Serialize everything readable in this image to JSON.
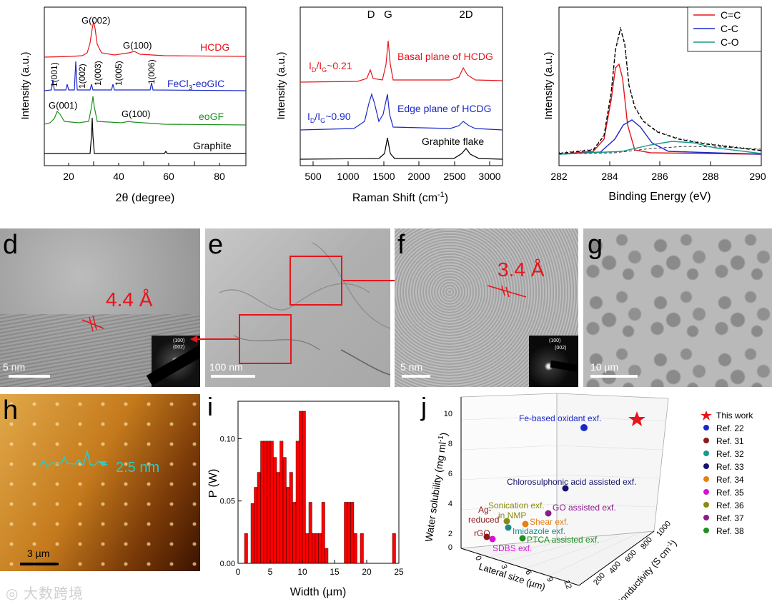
{
  "xrd": {
    "xlabel": "2θ (degree)",
    "ylabel": "Intensity (a.u.)",
    "xticks": [
      "20",
      "40",
      "60",
      "80"
    ],
    "samples": [
      {
        "name": "HCDG",
        "color": "#e8141b"
      },
      {
        "name": "FeCl3-eoGIC",
        "color": "#1a28c8"
      },
      {
        "name": "eoGF",
        "color": "#1f8f1f"
      },
      {
        "name": "Graphite",
        "color": "#000000"
      }
    ],
    "peak_labels": {
      "hcdg_g002": "G(002)",
      "hcdg_g100": "G(100)",
      "gic_1001": "1(001)",
      "gic_1002": "1(002)",
      "gic_1003": "1(003)",
      "gic_1005": "1(005)",
      "gic_1006": "1(006)",
      "eogf_g001": "G(001)",
      "eogf_g100": "G(100)"
    }
  },
  "raman": {
    "xlabel": "Raman Shift (cm-1)",
    "ylabel": "Intensity (a.u.)",
    "xticks": [
      "500",
      "1000",
      "1500",
      "2000",
      "2500",
      "3000"
    ],
    "band_labels": {
      "d": "D",
      "g": "G",
      "two_d": "2D"
    },
    "curves": [
      {
        "name": "Basal plane of HCDG",
        "ratio": "ID/IG~0.21",
        "color": "#e8141b"
      },
      {
        "name": "Edge plane of HCDG",
        "ratio": "ID/IG~0.90",
        "color": "#1a28c8"
      },
      {
        "name": "Graphite flake",
        "color": "#000000"
      }
    ]
  },
  "xps": {
    "xlabel": "Binding Energy (eV)",
    "ylabel": "Intensity (a.u.)",
    "xticks": [
      "282",
      "284",
      "286",
      "288",
      "290"
    ],
    "legend": [
      {
        "name": "C=C",
        "color": "#e8141b"
      },
      {
        "name": "C-C",
        "color": "#1a28c8"
      },
      {
        "name": "C-O",
        "color": "#1a9a8a"
      }
    ]
  },
  "images": {
    "d": {
      "label": "d",
      "scale": "5 nm",
      "spacing": "4.4 Å",
      "saed": [
        "(100)",
        "(002)"
      ]
    },
    "e": {
      "label": "e",
      "scale": "100 nm"
    },
    "f": {
      "label": "f",
      "scale": "5 nm",
      "spacing": "3.4 Å",
      "saed": [
        "(100)",
        "(002)"
      ]
    },
    "g": {
      "label": "g",
      "scale": "10 µm"
    },
    "h": {
      "label": "h",
      "scale": "3 µm",
      "height": "2.5 nm"
    }
  },
  "chart_data": {
    "type": "bar",
    "title": "i",
    "xlabel": "Width (µm)",
    "ylabel": "P (W)",
    "xlim": [
      0,
      25
    ],
    "ylim": [
      0,
      0.13
    ],
    "xticks": [
      "0",
      "5",
      "10",
      "15",
      "20",
      "25"
    ],
    "yticks": [
      "0.00",
      "0.05",
      "0.10"
    ],
    "bins_x": [
      1.0,
      2.0,
      2.5,
      3.0,
      3.5,
      4.0,
      4.5,
      5.0,
      5.5,
      6.0,
      6.5,
      7.0,
      7.5,
      8.0,
      8.5,
      9.0,
      9.5,
      10.0,
      10.5,
      11.0,
      11.5,
      12.0,
      12.5,
      13.0,
      13.5,
      16.5,
      17.0,
      17.5,
      18.0,
      19.0,
      24.0
    ],
    "bin_width": 0.5,
    "values": [
      0.024,
      0.048,
      0.061,
      0.073,
      0.098,
      0.098,
      0.098,
      0.098,
      0.085,
      0.073,
      0.098,
      0.085,
      0.061,
      0.073,
      0.049,
      0.098,
      0.122,
      0.122,
      0.024,
      0.049,
      0.024,
      0.024,
      0.024,
      0.049,
      0.012,
      0.049,
      0.049,
      0.049,
      0.024,
      0.024,
      0.024
    ]
  },
  "scatter3d": {
    "label": "j",
    "zlabel": "Water solubility (mg ml-1)",
    "xlabel": "Lateral size (µm)",
    "ylabel": "Conductivity (S cm-1)",
    "ztick_labels": [
      "0",
      "2",
      "4",
      "6",
      "8",
      "10"
    ],
    "xtick_labels": [
      "0",
      "3",
      "6",
      "9",
      "12"
    ],
    "ytick_labels": [
      "200",
      "400",
      "600",
      "800",
      "1000"
    ],
    "points": [
      {
        "name": "Fe-based oxidant exf.",
        "color": "#1a28c8"
      },
      {
        "name": "Chlorosulphonic acid assisted exf.",
        "color": "#14146e"
      },
      {
        "name": "Sonication exf. in NMP",
        "color": "#8a8a14"
      },
      {
        "name": "Ag-reduced rGO",
        "color": "#8b1a1a"
      },
      {
        "name": "Shear exf.",
        "color": "#e87f14"
      },
      {
        "name": "GO assisted exf.",
        "color": "#8b1a8b"
      },
      {
        "name": "Imidazole exf.",
        "color": "#1a8a8a"
      },
      {
        "name": "PTCA assisted exf.",
        "color": "#1f8f1f"
      },
      {
        "name": "SDBS exf.",
        "color": "#d414d4"
      }
    ],
    "legend": [
      {
        "name": "This work",
        "color": "#e8141b"
      },
      {
        "name": "Ref. 22",
        "color": "#1a28c8"
      },
      {
        "name": "Ref. 31",
        "color": "#8b1a1a"
      },
      {
        "name": "Ref. 32",
        "color": "#1a9a8a"
      },
      {
        "name": "Ref. 33",
        "color": "#14146e"
      },
      {
        "name": "Ref. 34",
        "color": "#e87f14"
      },
      {
        "name": "Ref. 35",
        "color": "#d414d4"
      },
      {
        "name": "Ref. 36",
        "color": "#8a8a14"
      },
      {
        "name": "Ref. 37",
        "color": "#8b1a8b"
      },
      {
        "name": "Ref. 38",
        "color": "#1f8f1f"
      }
    ]
  },
  "watermark": "大数跨境"
}
